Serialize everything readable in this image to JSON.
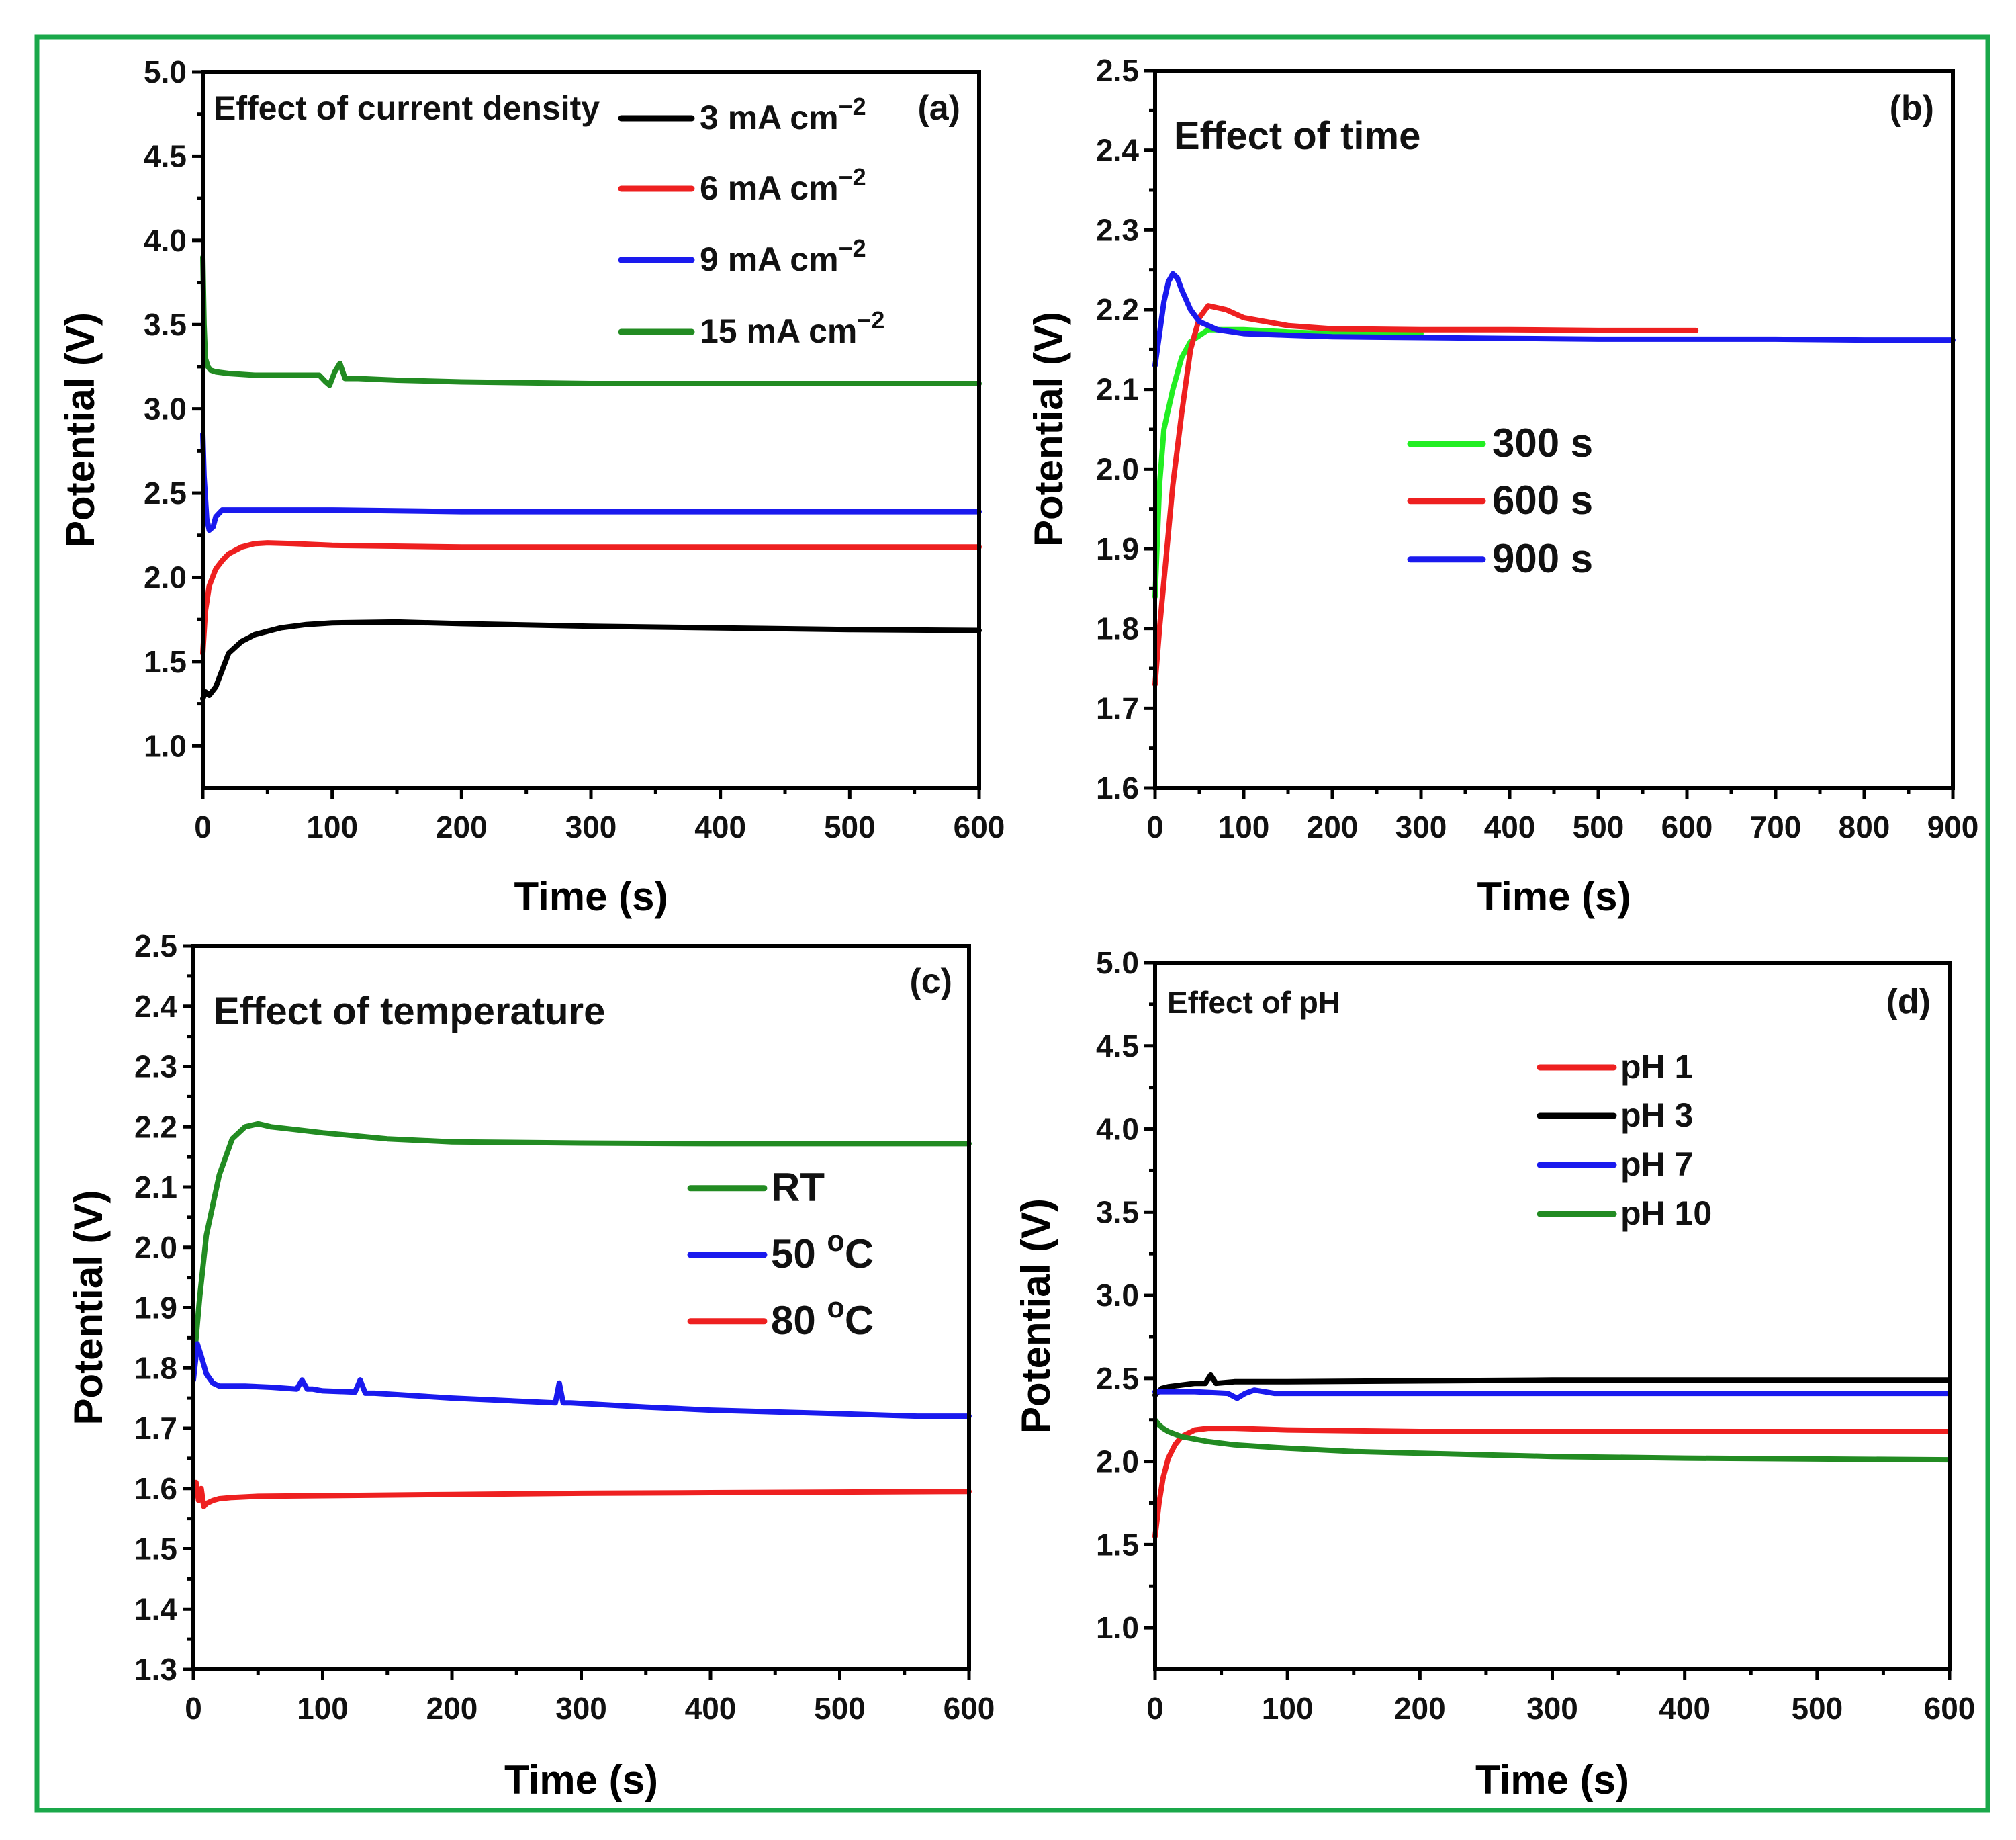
{
  "colors": {
    "frame": "#1aa84a",
    "black": "#000000",
    "red": "#ee2020",
    "blue": "#1a1aee",
    "darkgreen": "#228b22",
    "lightgreen": "#22ee22"
  },
  "chart_data": [
    {
      "id": "a",
      "type": "line",
      "panel_label": "(a)",
      "title": "Effect of current density",
      "xlabel": "Time (s)",
      "ylabel": "Potential (V)",
      "xlim": [
        0,
        600
      ],
      "ylim": [
        0.75,
        5.0
      ],
      "xticks": [
        "0",
        "100",
        "200",
        "300",
        "400",
        "500",
        "600"
      ],
      "yticks": [
        "1.0",
        "1.5",
        "2.0",
        "2.5",
        "3.0",
        "3.5",
        "4.0",
        "4.5",
        "5.0"
      ],
      "legend": "top-right",
      "series": [
        {
          "name": "3 mA cm",
          "sup": "−2",
          "color": "#000000",
          "x": [
            0,
            2,
            5,
            10,
            15,
            20,
            30,
            40,
            60,
            80,
            100,
            150,
            200,
            300,
            400,
            500,
            600
          ],
          "y": [
            1.28,
            1.32,
            1.3,
            1.35,
            1.45,
            1.55,
            1.62,
            1.66,
            1.7,
            1.72,
            1.73,
            1.735,
            1.725,
            1.71,
            1.7,
            1.69,
            1.685
          ]
        },
        {
          "name": "6 mA cm",
          "sup": "−2",
          "color": "#ee2020",
          "x": [
            0,
            2,
            5,
            10,
            15,
            20,
            30,
            40,
            50,
            70,
            100,
            200,
            300,
            400,
            500,
            600
          ],
          "y": [
            1.55,
            1.8,
            1.95,
            2.05,
            2.1,
            2.14,
            2.18,
            2.2,
            2.205,
            2.2,
            2.19,
            2.18,
            2.18,
            2.18,
            2.18,
            2.18
          ]
        },
        {
          "name": "9 mA cm",
          "sup": "−2",
          "color": "#1a1aee",
          "x": [
            0,
            1,
            3,
            5,
            8,
            10,
            15,
            20,
            40,
            100,
            200,
            300,
            400,
            500,
            600
          ],
          "y": [
            2.85,
            2.6,
            2.35,
            2.28,
            2.3,
            2.36,
            2.4,
            2.4,
            2.4,
            2.4,
            2.39,
            2.39,
            2.39,
            2.39,
            2.39
          ]
        },
        {
          "name": "15 mA cm",
          "sup": "−2",
          "color": "#228b22",
          "x": [
            0,
            1,
            2,
            4,
            6,
            10,
            20,
            40,
            60,
            90,
            95,
            98,
            102,
            106,
            110,
            120,
            150,
            200,
            300,
            400,
            500,
            600
          ],
          "y": [
            3.9,
            3.5,
            3.3,
            3.25,
            3.23,
            3.22,
            3.21,
            3.2,
            3.2,
            3.2,
            3.16,
            3.14,
            3.22,
            3.27,
            3.18,
            3.18,
            3.17,
            3.16,
            3.15,
            3.15,
            3.15,
            3.15
          ]
        }
      ]
    },
    {
      "id": "b",
      "type": "line",
      "panel_label": "(b)",
      "title": "Effect of time",
      "xlabel": "Time (s)",
      "ylabel": "Potential (V)",
      "xlim": [
        0,
        900
      ],
      "ylim": [
        1.6,
        2.5
      ],
      "xticks": [
        "0",
        "100",
        "200",
        "300",
        "400",
        "500",
        "600",
        "700",
        "800",
        "900"
      ],
      "yticks": [
        "1.6",
        "1.7",
        "1.8",
        "1.9",
        "2.0",
        "2.1",
        "2.2",
        "2.3",
        "2.4",
        "2.5"
      ],
      "legend": "center",
      "series": [
        {
          "name": "300 s",
          "sup": "",
          "color": "#22ee22",
          "x": [
            0,
            5,
            10,
            20,
            30,
            40,
            60,
            100,
            150,
            200,
            250,
            300
          ],
          "y": [
            1.84,
            1.98,
            2.05,
            2.1,
            2.14,
            2.16,
            2.175,
            2.175,
            2.172,
            2.17,
            2.17,
            2.17
          ]
        },
        {
          "name": "600 s",
          "sup": "",
          "color": "#ee2020",
          "x": [
            0,
            5,
            10,
            20,
            30,
            40,
            50,
            60,
            80,
            100,
            150,
            200,
            300,
            400,
            500,
            610
          ],
          "y": [
            1.73,
            1.8,
            1.86,
            1.98,
            2.07,
            2.15,
            2.19,
            2.205,
            2.2,
            2.19,
            2.18,
            2.176,
            2.175,
            2.175,
            2.174,
            2.174
          ]
        },
        {
          "name": "900 s",
          "sup": "",
          "color": "#1a1aee",
          "x": [
            0,
            5,
            10,
            15,
            20,
            25,
            30,
            40,
            50,
            70,
            100,
            150,
            200,
            300,
            400,
            500,
            600,
            700,
            800,
            900
          ],
          "y": [
            2.13,
            2.17,
            2.21,
            2.235,
            2.245,
            2.24,
            2.225,
            2.2,
            2.185,
            2.175,
            2.17,
            2.168,
            2.166,
            2.165,
            2.164,
            2.163,
            2.163,
            2.163,
            2.162,
            2.162
          ]
        }
      ]
    },
    {
      "id": "c",
      "type": "line",
      "panel_label": "(c)",
      "title": "Effect of temperature",
      "xlabel": "Time (s)",
      "ylabel": "Potential (V)",
      "xlim": [
        0,
        600
      ],
      "ylim": [
        1.3,
        2.5
      ],
      "xticks": [
        "0",
        "100",
        "200",
        "300",
        "400",
        "500",
        "600"
      ],
      "yticks": [
        "1.3",
        "1.4",
        "1.5",
        "1.6",
        "1.7",
        "1.8",
        "1.9",
        "2.0",
        "2.1",
        "2.2",
        "2.3",
        "2.4",
        "2.5"
      ],
      "legend": "center-right",
      "series": [
        {
          "name": "RT",
          "sup": "",
          "color": "#228b22",
          "x": [
            0,
            5,
            10,
            20,
            30,
            40,
            50,
            60,
            80,
            100,
            150,
            200,
            300,
            400,
            500,
            600
          ],
          "y": [
            1.8,
            1.92,
            2.02,
            2.12,
            2.18,
            2.2,
            2.205,
            2.2,
            2.195,
            2.19,
            2.18,
            2.175,
            2.173,
            2.172,
            2.172,
            2.172
          ]
        },
        {
          "name": "50 ",
          "sup": "o",
          "suffix": "C",
          "color": "#1a1aee",
          "x": [
            0,
            3,
            6,
            10,
            15,
            20,
            40,
            60,
            80,
            84,
            88,
            92,
            100,
            125,
            129,
            133,
            140,
            200,
            280,
            283,
            286,
            292,
            350,
            400,
            500,
            560,
            600
          ],
          "y": [
            1.78,
            1.84,
            1.82,
            1.79,
            1.775,
            1.77,
            1.77,
            1.768,
            1.765,
            1.78,
            1.765,
            1.765,
            1.762,
            1.76,
            1.78,
            1.758,
            1.758,
            1.75,
            1.742,
            1.775,
            1.742,
            1.742,
            1.735,
            1.73,
            1.724,
            1.72,
            1.72
          ]
        },
        {
          "name": "80 ",
          "sup": "o",
          "suffix": "C",
          "color": "#ee2020",
          "x": [
            0,
            2,
            4,
            6,
            8,
            10,
            15,
            20,
            30,
            50,
            100,
            200,
            300,
            400,
            500,
            600
          ],
          "y": [
            1.6,
            1.61,
            1.58,
            1.6,
            1.57,
            1.575,
            1.58,
            1.583,
            1.585,
            1.587,
            1.588,
            1.59,
            1.592,
            1.593,
            1.594,
            1.595
          ]
        }
      ]
    },
    {
      "id": "d",
      "type": "line",
      "panel_label": "(d)",
      "title": "Effect of pH",
      "xlabel": "Time (s)",
      "ylabel": "Potential (V)",
      "xlim": [
        0,
        600
      ],
      "ylim": [
        0.75,
        5.0
      ],
      "xticks": [
        "0",
        "100",
        "200",
        "300",
        "400",
        "500",
        "600"
      ],
      "yticks": [
        "1.0",
        "1.5",
        "2.0",
        "2.5",
        "3.0",
        "3.5",
        "4.0",
        "4.5",
        "5.0"
      ],
      "legend": "top-right",
      "series": [
        {
          "name": "pH 1",
          "sup": "",
          "color": "#ee2020",
          "x": [
            0,
            3,
            6,
            10,
            15,
            20,
            30,
            40,
            60,
            100,
            200,
            300,
            400,
            500,
            600
          ],
          "y": [
            1.55,
            1.75,
            1.9,
            2.02,
            2.1,
            2.15,
            2.19,
            2.2,
            2.2,
            2.19,
            2.18,
            2.18,
            2.18,
            2.18,
            2.18
          ]
        },
        {
          "name": "pH 3",
          "sup": "",
          "color": "#000000",
          "x": [
            0,
            5,
            10,
            20,
            30,
            38,
            42,
            46,
            60,
            100,
            200,
            300,
            400,
            500,
            600
          ],
          "y": [
            2.4,
            2.44,
            2.45,
            2.46,
            2.47,
            2.47,
            2.52,
            2.47,
            2.48,
            2.48,
            2.485,
            2.49,
            2.49,
            2.49,
            2.49
          ]
        },
        {
          "name": "pH 7",
          "sup": "",
          "color": "#1a1aee",
          "x": [
            0,
            5,
            10,
            30,
            55,
            62,
            68,
            75,
            90,
            100,
            200,
            300,
            400,
            500,
            600
          ],
          "y": [
            2.42,
            2.42,
            2.42,
            2.42,
            2.41,
            2.38,
            2.41,
            2.43,
            2.41,
            2.41,
            2.41,
            2.41,
            2.41,
            2.41,
            2.41
          ]
        },
        {
          "name": "pH 10",
          "sup": "",
          "color": "#228b22",
          "x": [
            0,
            3,
            6,
            10,
            20,
            40,
            60,
            100,
            150,
            200,
            300,
            400,
            500,
            600
          ],
          "y": [
            2.25,
            2.22,
            2.2,
            2.18,
            2.15,
            2.12,
            2.1,
            2.08,
            2.06,
            2.05,
            2.03,
            2.02,
            2.015,
            2.01
          ]
        }
      ]
    }
  ]
}
